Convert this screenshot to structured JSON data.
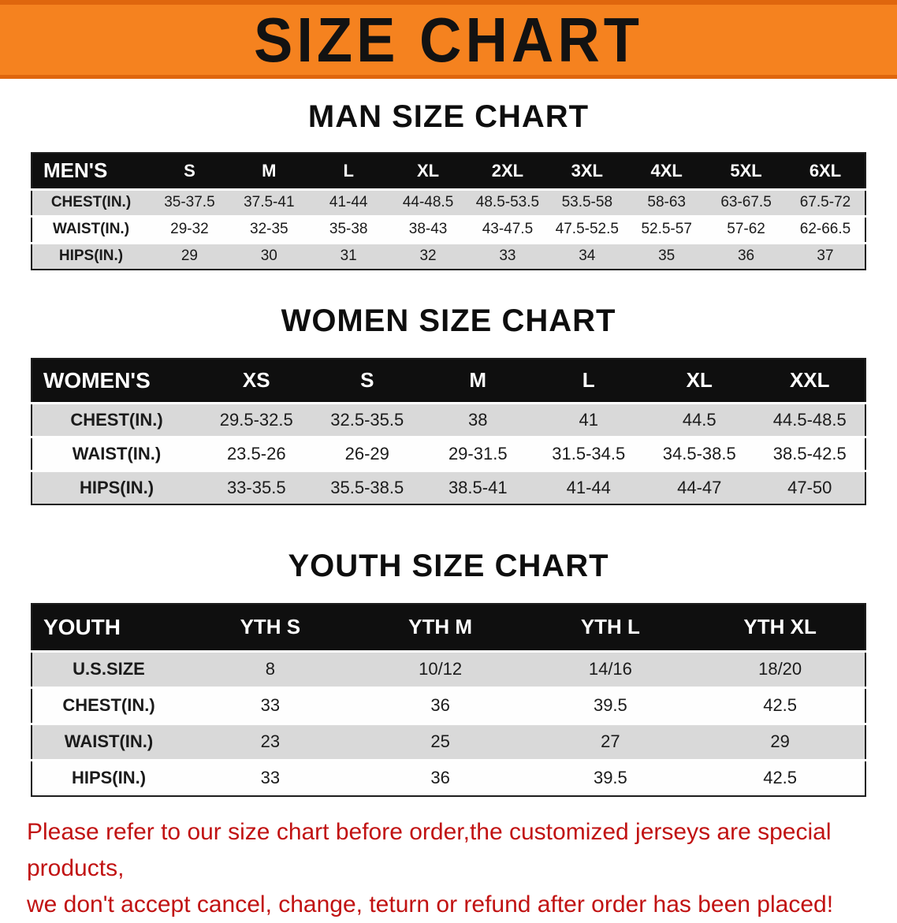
{
  "banner": {
    "title": "SIZE CHART"
  },
  "sections": {
    "men": {
      "title": "MAN SIZE CHART",
      "table": {
        "header": [
          "MEN'S",
          "S",
          "M",
          "L",
          "XL",
          "2XL",
          "3XL",
          "4XL",
          "5XL",
          "6XL"
        ],
        "rows": [
          [
            "CHEST(IN.)",
            "35-37.5",
            "37.5-41",
            "41-44",
            "44-48.5",
            "48.5-53.5",
            "53.5-58",
            "58-63",
            "63-67.5",
            "67.5-72"
          ],
          [
            "WAIST(IN.)",
            "29-32",
            "32-35",
            "35-38",
            "38-43",
            "43-47.5",
            "47.5-52.5",
            "52.5-57",
            "57-62",
            "62-66.5"
          ],
          [
            "HIPS(IN.)",
            "29",
            "30",
            "31",
            "32",
            "33",
            "34",
            "35",
            "36",
            "37"
          ]
        ]
      }
    },
    "women": {
      "title": "WOMEN SIZE CHART",
      "table": {
        "header": [
          "WOMEN'S",
          "XS",
          "S",
          "M",
          "L",
          "XL",
          "XXL"
        ],
        "rows": [
          [
            "CHEST(IN.)",
            "29.5-32.5",
            "32.5-35.5",
            "38",
            "41",
            "44.5",
            "44.5-48.5"
          ],
          [
            "WAIST(IN.)",
            "23.5-26",
            "26-29",
            "29-31.5",
            "31.5-34.5",
            "34.5-38.5",
            "38.5-42.5"
          ],
          [
            "HIPS(IN.)",
            "33-35.5",
            "35.5-38.5",
            "38.5-41",
            "41-44",
            "44-47",
            "47-50"
          ]
        ]
      }
    },
    "youth": {
      "title": "YOUTH SIZE CHART",
      "table": {
        "header": [
          "YOUTH",
          "YTH S",
          "YTH M",
          "YTH L",
          "YTH XL"
        ],
        "rows": [
          [
            "U.S.SIZE",
            "8",
            "10/12",
            "14/16",
            "18/20"
          ],
          [
            "CHEST(IN.)",
            "33",
            "36",
            "39.5",
            "42.5"
          ],
          [
            "WAIST(IN.)",
            "23",
            "25",
            "27",
            "29"
          ],
          [
            "HIPS(IN.)",
            "33",
            "36",
            "39.5",
            "42.5"
          ]
        ]
      }
    }
  },
  "disclaimer": {
    "line1": "Please refer to our size chart before order,the customized jerseys are special products,",
    "line2": "we don't accept cancel, change, teturn or refund after order has been placed!"
  },
  "colors": {
    "banner_bg": "#F5821F",
    "banner_border": "#DF660D",
    "header_bg": "#0F0F0F",
    "row_alt_bg": "#D9D9D9",
    "disclaimer_red": "#C11212"
  }
}
